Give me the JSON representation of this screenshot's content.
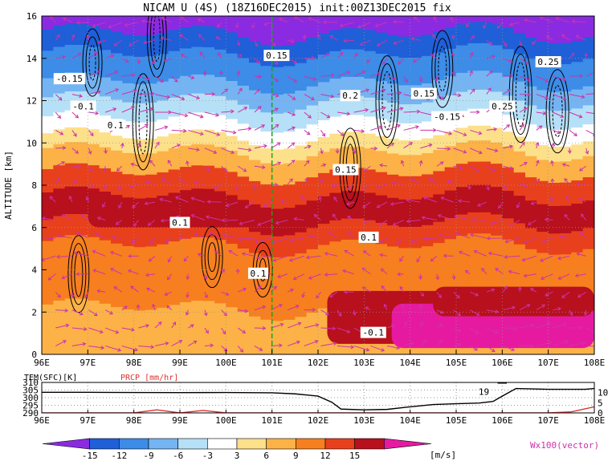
{
  "chart_data": [
    {
      "type": "heatmap",
      "title": "NICAM U (4S) (18Z16DEC2015) init:00Z13DEC2015 fix",
      "ylabel": "ALTITUDE [km]",
      "xlim": [
        96,
        108
      ],
      "ylim": [
        0,
        16
      ],
      "x_ticks": [
        "96E",
        "97E",
        "98E",
        "99E",
        "100E",
        "101E",
        "102E",
        "103E",
        "104E",
        "105E",
        "106E",
        "107E",
        "108E"
      ],
      "y_ticks": [
        "0",
        "2",
        "4",
        "6",
        "8",
        "10",
        "12",
        "14",
        "16"
      ],
      "grid": true,
      "marked_longitude": 101,
      "contour_labels": [
        "-0.1",
        "0.1",
        "0.15",
        "0.2",
        "0.25",
        "-0.15"
      ],
      "colorbar": {
        "levels": [
          "-15",
          "-12",
          "-9",
          "-6",
          "-3",
          "3",
          "6",
          "9",
          "12",
          "15"
        ],
        "unit": "[m/s]",
        "colors": [
          "#8a2be2",
          "#1f5fd8",
          "#3c8ce8",
          "#74b4f2",
          "#b6e0f7",
          "#ffffff",
          "#fde08a",
          "#fcb247",
          "#f77f1f",
          "#e8401c",
          "#b8101c",
          "#e61aa0"
        ]
      },
      "vector_label": "Wx100(vector)",
      "vector_color": "#cc33aa"
    },
    {
      "type": "line",
      "left_label": "TEM(SFC)[K]",
      "right_label": "PRCP [mm/hr]",
      "xlim": [
        96,
        108
      ],
      "x_ticks": [
        "96E",
        "97E",
        "98E",
        "99E",
        "100E",
        "101E",
        "102E",
        "103E",
        "104E",
        "105E",
        "106E",
        "107E",
        "108E"
      ],
      "y_left_ticks": [
        "290",
        "295",
        "300",
        "305",
        "310"
      ],
      "y_right_ticks": [
        "0",
        "5",
        "10"
      ],
      "ylim_left": [
        290,
        310
      ],
      "ylim_right": [
        0,
        15
      ],
      "series": [
        {
          "color": "#000000",
          "x": [
            96,
            97,
            98,
            99,
            100,
            101,
            101.5,
            102,
            102.3,
            102.5,
            103,
            103.5,
            104,
            104.5,
            105,
            105.5,
            105.8,
            106,
            106.3,
            107,
            107.8,
            108
          ],
          "values": [
            303.5,
            303.5,
            303.4,
            303.3,
            303.4,
            303.2,
            302.5,
            301,
            297,
            292.5,
            292,
            292.3,
            294,
            295.5,
            296,
            296.5,
            297.5,
            301,
            306,
            305.5,
            305.5,
            306
          ]
        },
        {
          "color": "#e03030",
          "x": [
            96,
            97,
            98,
            98.5,
            99,
            99.5,
            100,
            101,
            102,
            103,
            104,
            105,
            106,
            107,
            107.5,
            108
          ],
          "values": [
            0,
            0,
            0,
            1.5,
            0,
            1.2,
            0,
            0,
            0,
            0,
            0,
            0,
            0,
            0,
            0.5,
            3
          ]
        }
      ],
      "annotation": "19"
    }
  ]
}
